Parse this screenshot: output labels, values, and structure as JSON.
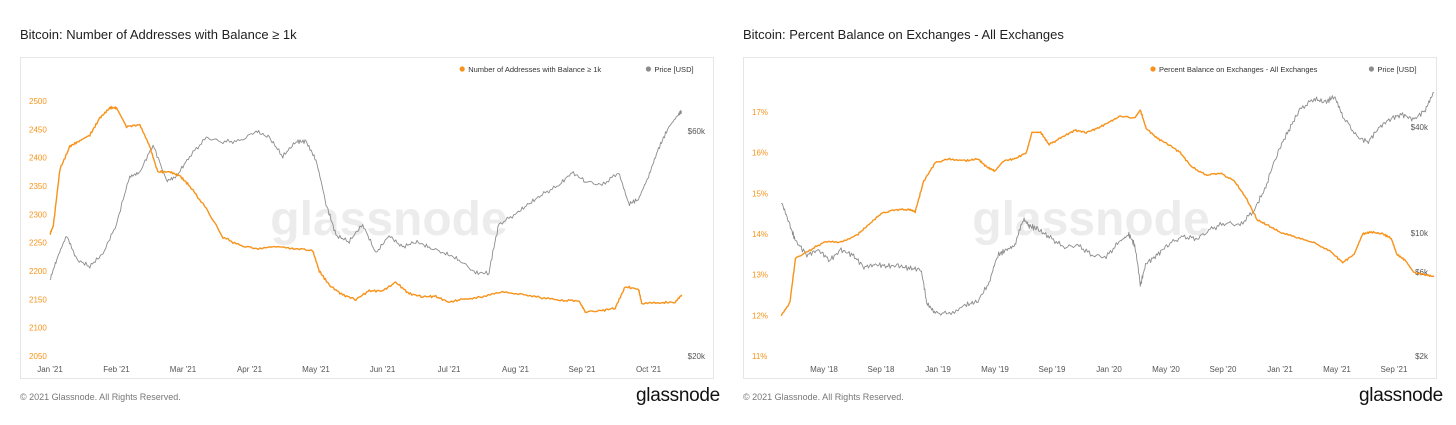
{
  "colors": {
    "metric": "#f7931a",
    "price": "#8c8c8c",
    "watermark": "#ececec"
  },
  "charts": [
    {
      "title": "Bitcoin: Number of Addresses with Balance ≥ 1k",
      "footer": "© 2021 Glassnode. All Rights Reserved.",
      "logo": "glassnode",
      "watermark": "glassnode",
      "legend": [
        "Number of Addresses with Balance ≥ 1k",
        "Price [USD]"
      ]
    },
    {
      "title": "Bitcoin: Percent Balance on Exchanges - All Exchanges",
      "footer": "© 2021 Glassnode. All Rights Reserved.",
      "logo": "glassnode",
      "watermark": "glassnode",
      "legend": [
        "Percent Balance on Exchanges - All Exchanges",
        "Price [USD]"
      ]
    }
  ],
  "chart_data": [
    {
      "type": "line",
      "title": "Bitcoin: Number of Addresses with Balance ≥ 1k",
      "x_ticks": [
        "Jan '21",
        "Feb '21",
        "Mar '21",
        "Apr '21",
        "May '21",
        "Jun '21",
        "Jul '21",
        "Aug '21",
        "Sep '21",
        "Oct '21"
      ],
      "y_left": {
        "min": 2050,
        "max": 2500,
        "ticks": [
          "2050",
          "2100",
          "2150",
          "2200",
          "2250",
          "2300",
          "2350",
          "2400",
          "2450",
          "2500"
        ],
        "values": [
          2050,
          2100,
          2150,
          2200,
          2250,
          2300,
          2350,
          2400,
          2450,
          2500
        ]
      },
      "y_right": {
        "scale": "log",
        "ticks": [
          "$20k",
          "$60k"
        ],
        "values": [
          20000,
          60000
        ]
      },
      "legend_position": "top-right",
      "grid": false,
      "series": [
        {
          "name": "Number of Addresses with Balance ≥ 1k",
          "axis": "left",
          "points": [
            [
              0,
              2265
            ],
            [
              0.05,
              2280
            ],
            [
              0.15,
              2380
            ],
            [
              0.3,
              2420
            ],
            [
              0.45,
              2430
            ],
            [
              0.6,
              2440
            ],
            [
              0.75,
              2470
            ],
            [
              0.9,
              2488
            ],
            [
              1.0,
              2488
            ],
            [
              1.15,
              2455
            ],
            [
              1.35,
              2458
            ],
            [
              1.5,
              2420
            ],
            [
              1.62,
              2375
            ],
            [
              1.8,
              2375
            ],
            [
              1.95,
              2368
            ],
            [
              2.1,
              2350
            ],
            [
              2.35,
              2310
            ],
            [
              2.6,
              2260
            ],
            [
              2.85,
              2245
            ],
            [
              3.1,
              2240
            ],
            [
              3.4,
              2242
            ],
            [
              3.7,
              2240
            ],
            [
              3.95,
              2236
            ],
            [
              4.05,
              2200
            ],
            [
              4.2,
              2175
            ],
            [
              4.4,
              2158
            ],
            [
              4.6,
              2150
            ],
            [
              4.8,
              2165
            ],
            [
              5.0,
              2165
            ],
            [
              5.2,
              2180
            ],
            [
              5.4,
              2160
            ],
            [
              5.6,
              2155
            ],
            [
              5.8,
              2155
            ],
            [
              6.0,
              2145
            ],
            [
              6.2,
              2150
            ],
            [
              6.5,
              2155
            ],
            [
              6.8,
              2162
            ],
            [
              7.1,
              2160
            ],
            [
              7.4,
              2152
            ],
            [
              7.7,
              2148
            ],
            [
              7.95,
              2148
            ],
            [
              8.05,
              2128
            ],
            [
              8.3,
              2130
            ],
            [
              8.5,
              2135
            ],
            [
              8.65,
              2172
            ],
            [
              8.85,
              2168
            ],
            [
              8.9,
              2142
            ],
            [
              9.2,
              2144
            ],
            [
              9.4,
              2145
            ],
            [
              9.5,
              2158
            ]
          ]
        },
        {
          "name": "Price [USD]",
          "axis": "right",
          "points": [
            [
              0,
              29000
            ],
            [
              0.1,
              32000
            ],
            [
              0.25,
              36000
            ],
            [
              0.4,
              32000
            ],
            [
              0.6,
              31000
            ],
            [
              0.8,
              33000
            ],
            [
              1.0,
              38000
            ],
            [
              1.2,
              48000
            ],
            [
              1.35,
              49000
            ],
            [
              1.55,
              56000
            ],
            [
              1.75,
              47000
            ],
            [
              1.9,
              48000
            ],
            [
              2.1,
              53000
            ],
            [
              2.35,
              58000
            ],
            [
              2.6,
              57000
            ],
            [
              2.85,
              57000
            ],
            [
              3.1,
              60000
            ],
            [
              3.3,
              58000
            ],
            [
              3.5,
              53000
            ],
            [
              3.7,
              57000
            ],
            [
              3.85,
              57000
            ],
            [
              4.0,
              52000
            ],
            [
              4.15,
              42000
            ],
            [
              4.3,
              36000
            ],
            [
              4.5,
              35000
            ],
            [
              4.7,
              38000
            ],
            [
              4.9,
              33000
            ],
            [
              5.1,
              36000
            ],
            [
              5.3,
              34000
            ],
            [
              5.5,
              35000
            ],
            [
              5.7,
              34000
            ],
            [
              5.95,
              33000
            ],
            [
              6.15,
              32000
            ],
            [
              6.4,
              30000
            ],
            [
              6.6,
              30000
            ],
            [
              6.75,
              38000
            ],
            [
              7.0,
              40000
            ],
            [
              7.2,
              42000
            ],
            [
              7.4,
              44000
            ],
            [
              7.65,
              46000
            ],
            [
              7.85,
              49000
            ],
            [
              8.05,
              47000
            ],
            [
              8.3,
              46000
            ],
            [
              8.55,
              49000
            ],
            [
              8.7,
              42000
            ],
            [
              8.85,
              43000
            ],
            [
              9.0,
              48000
            ],
            [
              9.15,
              55000
            ],
            [
              9.3,
              61000
            ],
            [
              9.45,
              65000
            ],
            [
              9.5,
              66000
            ]
          ]
        }
      ]
    },
    {
      "type": "line",
      "title": "Bitcoin: Percent Balance on Exchanges - All Exchanges",
      "x_ticks": [
        "May '18",
        "Sep '18",
        "Jan '19",
        "May '19",
        "Sep '19",
        "Jan '20",
        "May '20",
        "Sep '20",
        "Jan '21",
        "May '21",
        "Sep '21"
      ],
      "y_left": {
        "min": 11,
        "max": 17,
        "ticks": [
          "11%",
          "12%",
          "13%",
          "14%",
          "15%",
          "16%",
          "17%"
        ],
        "values": [
          11,
          12,
          13,
          14,
          15,
          16,
          17
        ]
      },
      "y_right": {
        "scale": "log",
        "ticks": [
          "$2k",
          "$6k",
          "$10k",
          "$40k"
        ],
        "values": [
          2000,
          6000,
          10000,
          40000
        ]
      },
      "legend_position": "top-right",
      "grid": false,
      "series": [
        {
          "name": "Percent Balance on Exchanges - All Exchanges",
          "axis": "left",
          "points": [
            [
              -0.75,
              12.0
            ],
            [
              -0.6,
              12.3
            ],
            [
              -0.5,
              13.4
            ],
            [
              -0.25,
              13.6
            ],
            [
              0.0,
              13.8
            ],
            [
              0.3,
              13.8
            ],
            [
              0.6,
              14.0
            ],
            [
              0.8,
              14.25
            ],
            [
              1.0,
              14.5
            ],
            [
              1.25,
              14.6
            ],
            [
              1.5,
              14.6
            ],
            [
              1.6,
              14.55
            ],
            [
              1.75,
              15.3
            ],
            [
              1.95,
              15.75
            ],
            [
              2.2,
              15.85
            ],
            [
              2.5,
              15.8
            ],
            [
              2.7,
              15.85
            ],
            [
              2.85,
              15.65
            ],
            [
              3.0,
              15.55
            ],
            [
              3.15,
              15.8
            ],
            [
              3.35,
              15.85
            ],
            [
              3.55,
              16.0
            ],
            [
              3.65,
              16.5
            ],
            [
              3.8,
              16.5
            ],
            [
              3.95,
              16.2
            ],
            [
              4.2,
              16.4
            ],
            [
              4.4,
              16.55
            ],
            [
              4.6,
              16.5
            ],
            [
              4.8,
              16.6
            ],
            [
              5.0,
              16.75
            ],
            [
              5.2,
              16.9
            ],
            [
              5.45,
              16.85
            ],
            [
              5.55,
              17.05
            ],
            [
              5.65,
              16.6
            ],
            [
              5.85,
              16.35
            ],
            [
              6.05,
              16.2
            ],
            [
              6.25,
              16.0
            ],
            [
              6.45,
              15.65
            ],
            [
              6.7,
              15.45
            ],
            [
              6.95,
              15.5
            ],
            [
              7.2,
              15.3
            ],
            [
              7.4,
              14.9
            ],
            [
              7.6,
              14.35
            ],
            [
              7.8,
              14.2
            ],
            [
              8.0,
              14.05
            ],
            [
              8.3,
              13.9
            ],
            [
              8.6,
              13.8
            ],
            [
              8.9,
              13.55
            ],
            [
              9.1,
              13.3
            ],
            [
              9.3,
              13.5
            ],
            [
              9.45,
              14.0
            ],
            [
              9.6,
              14.05
            ],
            [
              9.8,
              14.0
            ],
            [
              9.95,
              13.9
            ],
            [
              10.05,
              13.5
            ],
            [
              10.2,
              13.35
            ],
            [
              10.35,
              13.05
            ],
            [
              10.55,
              13.0
            ],
            [
              10.7,
              12.95
            ]
          ]
        },
        {
          "name": "Price [USD]",
          "axis": "right",
          "points": [
            [
              -0.75,
              15000
            ],
            [
              -0.6,
              11000
            ],
            [
              -0.5,
              9000
            ],
            [
              -0.3,
              7500
            ],
            [
              -0.1,
              8000
            ],
            [
              0.1,
              7000
            ],
            [
              0.3,
              8000
            ],
            [
              0.5,
              7500
            ],
            [
              0.7,
              6400
            ],
            [
              0.9,
              6600
            ],
            [
              1.1,
              6500
            ],
            [
              1.3,
              6500
            ],
            [
              1.5,
              6300
            ],
            [
              1.7,
              6200
            ],
            [
              1.8,
              4000
            ],
            [
              1.95,
              3500
            ],
            [
              2.2,
              3500
            ],
            [
              2.5,
              3900
            ],
            [
              2.7,
              4100
            ],
            [
              2.9,
              5200
            ],
            [
              3.05,
              7500
            ],
            [
              3.2,
              8000
            ],
            [
              3.35,
              8500
            ],
            [
              3.5,
              12000
            ],
            [
              3.6,
              11000
            ],
            [
              3.75,
              10500
            ],
            [
              3.95,
              9500
            ],
            [
              4.2,
              8300
            ],
            [
              4.45,
              8500
            ],
            [
              4.7,
              7500
            ],
            [
              4.95,
              7300
            ],
            [
              5.2,
              9000
            ],
            [
              5.35,
              9800
            ],
            [
              5.45,
              8500
            ],
            [
              5.55,
              5000
            ],
            [
              5.65,
              6700
            ],
            [
              5.85,
              7500
            ],
            [
              6.05,
              8700
            ],
            [
              6.3,
              9500
            ],
            [
              6.55,
              9300
            ],
            [
              6.8,
              10500
            ],
            [
              7.05,
              11500
            ],
            [
              7.3,
              11000
            ],
            [
              7.55,
              13500
            ],
            [
              7.75,
              18000
            ],
            [
              7.95,
              28000
            ],
            [
              8.15,
              38000
            ],
            [
              8.35,
              50000
            ],
            [
              8.6,
              58000
            ],
            [
              8.8,
              55000
            ],
            [
              8.95,
              60000
            ],
            [
              9.1,
              46000
            ],
            [
              9.35,
              35000
            ],
            [
              9.55,
              33000
            ],
            [
              9.75,
              40000
            ],
            [
              9.95,
              45000
            ],
            [
              10.15,
              47000
            ],
            [
              10.35,
              44000
            ],
            [
              10.55,
              50000
            ],
            [
              10.7,
              63000
            ]
          ]
        }
      ]
    }
  ]
}
